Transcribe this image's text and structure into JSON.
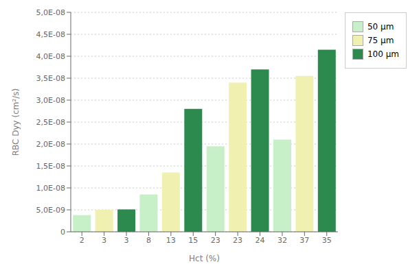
{
  "chart_data": {
    "type": "bar",
    "x_label": "Hct (%)",
    "y_label": "RBC Dyy (cm²/s)",
    "categories": [
      "2",
      "3",
      "3",
      "8",
      "13",
      "15",
      "23",
      "23",
      "24",
      "32",
      "37",
      "35"
    ],
    "series": [
      {
        "name": "50 μm",
        "color": "#c8f0c8",
        "values": [
          3.8e-09,
          null,
          null,
          8.5e-09,
          null,
          null,
          1.95e-08,
          null,
          null,
          2.1e-08,
          null,
          null
        ]
      },
      {
        "name": "75 μm",
        "color": "#f0f0b0",
        "values": [
          null,
          5e-09,
          null,
          null,
          1.35e-08,
          null,
          null,
          3.4e-08,
          null,
          null,
          3.55e-08,
          null
        ]
      },
      {
        "name": "100 μm",
        "color": "#2d8a4e",
        "values": [
          null,
          null,
          5.1e-09,
          null,
          null,
          2.8e-08,
          null,
          null,
          3.7e-08,
          null,
          null,
          4.15e-08
        ]
      }
    ],
    "ylim": [
      0,
      5e-08
    ],
    "yticks": [
      0,
      {
        "value": 5e-09,
        "label": "5,0E-09"
      },
      {
        "value": 1e-08,
        "label": "1,0E-08"
      },
      {
        "value": 1.5e-08,
        "label": "1,5E-08"
      },
      {
        "value": 2e-08,
        "label": "2,0E-08"
      },
      {
        "value": 2.5e-08,
        "label": "2,5E-08"
      },
      {
        "value": 3e-08,
        "label": "3,0E-08"
      },
      {
        "value": 3.5e-08,
        "label": "3,5E-08"
      },
      {
        "value": 4e-08,
        "label": "4,0E-08"
      },
      {
        "value": 4.5e-08,
        "label": "4,5E-08"
      },
      {
        "value": 5e-08,
        "label": "5,0E-08"
      }
    ],
    "grid": true,
    "legend": "upper right"
  }
}
